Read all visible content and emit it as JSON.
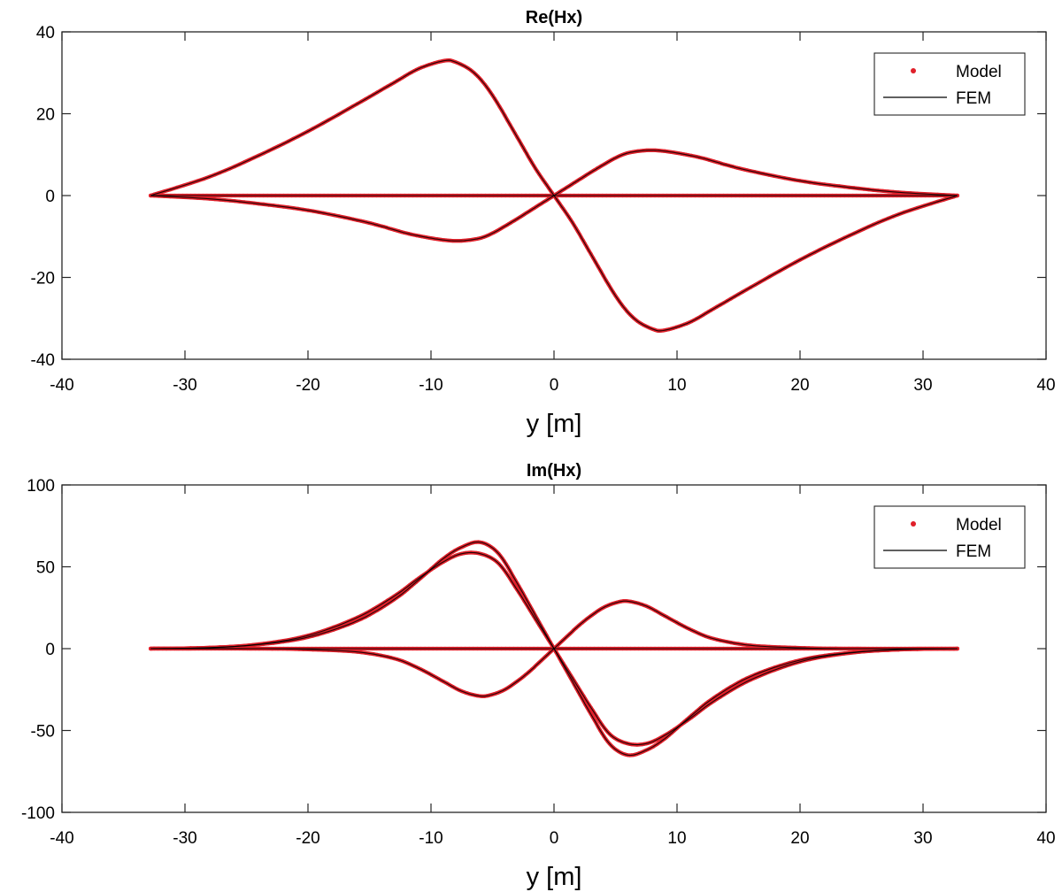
{
  "chart_data": [
    {
      "type": "line",
      "title": "Re(Hx)",
      "xlabel": "y [m]",
      "ylabel": "",
      "xlim": [
        -40,
        40
      ],
      "ylim": [
        -40,
        40
      ],
      "xticks": [
        -40,
        -30,
        -20,
        -10,
        0,
        10,
        20,
        30,
        40
      ],
      "yticks": [
        -40,
        -20,
        0,
        20,
        40
      ],
      "xtick_labels": [
        "-40",
        "-30",
        "-20",
        "-10",
        "0",
        "10",
        "20",
        "30",
        "40"
      ],
      "ytick_labels": [
        "-40",
        "-20",
        "0",
        "20",
        "40"
      ],
      "legend": {
        "placement": "top-right",
        "entries": [
          "Model",
          "FEM"
        ]
      },
      "grid": false,
      "colors": {
        "model": "#e0202a",
        "fem": "#000000"
      },
      "series": [
        {
          "label": "Model",
          "style": "points",
          "curves": [
            {
              "x": [
                -32.8,
                -28,
                -24,
                -20,
                -16,
                -13,
                -11,
                -9,
                -8,
                -6.5,
                -5,
                -3,
                -1.5,
                0,
                1.5,
                3,
                5,
                6.5,
                8,
                9,
                11,
                13,
                16,
                20,
                24,
                28,
                32.8
              ],
              "y": [
                0,
                4.6,
                9.8,
                15.7,
                22.4,
                27.6,
                31,
                32.9,
                32.6,
                30,
                24.5,
                14.3,
                6.6,
                0,
                -6.6,
                -14.3,
                -24.5,
                -30,
                -32.6,
                -32.9,
                -31,
                -27.6,
                -22.4,
                -15.7,
                -9.8,
                -4.6,
                0
              ]
            },
            {
              "x": [
                -32.8,
                -28,
                -24,
                -20,
                -16,
                -14,
                -12,
                -10,
                -8.5,
                -7.3,
                -6,
                -5,
                -4,
                -3,
                -2,
                -1,
                0,
                1,
                2,
                3,
                4,
                5,
                6,
                7.3,
                8.5,
                10,
                12,
                14,
                16,
                20,
                24,
                28,
                32.8
              ],
              "y": [
                0,
                -0.8,
                -2,
                -3.6,
                -6,
                -7.5,
                -9.2,
                -10.4,
                -11,
                -11,
                -10.4,
                -9.2,
                -7.5,
                -5.7,
                -3.8,
                -1.9,
                0,
                1.9,
                3.8,
                5.7,
                7.5,
                9.2,
                10.4,
                11,
                11,
                10.4,
                9.2,
                7.5,
                6,
                3.6,
                2,
                0.8,
                0
              ]
            },
            {
              "x": [
                -32.8,
                32.8
              ],
              "y": [
                0,
                0
              ]
            }
          ]
        },
        {
          "label": "FEM",
          "style": "line",
          "curves": [
            {
              "x": [
                -32.8,
                -28,
                -24,
                -20,
                -16,
                -13,
                -11,
                -9,
                -8,
                -6.5,
                -5,
                -3,
                -1.5,
                0,
                1.5,
                3,
                5,
                6.5,
                8,
                9,
                11,
                13,
                16,
                20,
                24,
                28,
                32.8
              ],
              "y": [
                0,
                4.6,
                9.8,
                15.7,
                22.4,
                27.6,
                31,
                32.9,
                32.6,
                30,
                24.5,
                14.3,
                6.6,
                0,
                -6.6,
                -14.3,
                -24.5,
                -30,
                -32.6,
                -32.9,
                -31,
                -27.6,
                -22.4,
                -15.7,
                -9.8,
                -4.6,
                0
              ]
            },
            {
              "x": [
                -32.8,
                -28,
                -24,
                -20,
                -16,
                -14,
                -12,
                -10,
                -8.5,
                -7.3,
                -6,
                -5,
                -4,
                -3,
                -2,
                -1,
                0,
                1,
                2,
                3,
                4,
                5,
                6,
                7.3,
                8.5,
                10,
                12,
                14,
                16,
                20,
                24,
                28,
                32.8
              ],
              "y": [
                0,
                -0.8,
                -2,
                -3.6,
                -6,
                -7.5,
                -9.2,
                -10.4,
                -11,
                -11,
                -10.4,
                -9.2,
                -7.5,
                -5.7,
                -3.8,
                -1.9,
                0,
                1.9,
                3.8,
                5.7,
                7.5,
                9.2,
                10.4,
                11,
                11,
                10.4,
                9.2,
                7.5,
                6,
                3.6,
                2,
                0.8,
                0
              ]
            },
            {
              "x": [
                -32.8,
                32.8
              ],
              "y": [
                0,
                0
              ]
            }
          ]
        }
      ]
    },
    {
      "type": "line",
      "title": "Im(Hx)",
      "xlabel": "y [m]",
      "ylabel": "",
      "xlim": [
        -40,
        40
      ],
      "ylim": [
        -100,
        100
      ],
      "xticks": [
        -40,
        -30,
        -20,
        -10,
        0,
        10,
        20,
        30,
        40
      ],
      "yticks": [
        -100,
        -50,
        0,
        50,
        100
      ],
      "xtick_labels": [
        "-40",
        "-30",
        "-20",
        "-10",
        "0",
        "10",
        "20",
        "30",
        "40"
      ],
      "ytick_labels": [
        "-100",
        "-50",
        "0",
        "50",
        "100"
      ],
      "legend": {
        "placement": "top-right",
        "entries": [
          "Model",
          "FEM"
        ]
      },
      "grid": false,
      "colors": {
        "model": "#e0202a",
        "fem": "#000000"
      },
      "series": [
        {
          "label": "Model",
          "style": "points",
          "curves": [
            {
              "x": [
                -32.8,
                -28,
                -24,
                -20,
                -16,
                -13,
                -11,
                -9,
                -7.5,
                -6,
                -4.5,
                -3,
                -1.5,
                0,
                1.5,
                3,
                4.5,
                6,
                7.5,
                9,
                11,
                13,
                16,
                20,
                24,
                28,
                32.8
              ],
              "y": [
                0,
                0.6,
                2.5,
                7,
                17,
                30,
                42,
                55,
                62,
                65,
                58,
                40,
                20,
                0,
                -20,
                -40,
                -58,
                -65,
                -62,
                -55,
                -42,
                -30,
                -17,
                -7,
                -2.5,
                -0.6,
                0
              ]
            },
            {
              "x": [
                -32.8,
                -28,
                -24,
                -20,
                -16,
                -13,
                -11,
                -9,
                -7.5,
                -6,
                -4.5,
                -3,
                -1.5,
                0,
                1.5,
                3,
                4.5,
                6,
                7.5,
                9,
                11,
                13,
                16,
                20,
                24,
                28,
                32.8
              ],
              "y": [
                0,
                0.6,
                2.7,
                8,
                19,
                32,
                43,
                53,
                58,
                58,
                52,
                36,
                18,
                0,
                -18,
                -36,
                -52,
                -58,
                -58,
                -53,
                -43,
                -32,
                -19,
                -8,
                -2.7,
                -0.6,
                0
              ]
            },
            {
              "x": [
                -32.8,
                -24,
                -20,
                -16,
                -13,
                -11,
                -9,
                -7.5,
                -6,
                -5,
                -4,
                -3,
                -2,
                -1,
                0,
                1,
                2,
                3,
                4,
                5,
                6,
                7.5,
                9,
                11,
                13,
                16,
                20,
                24,
                32.8
              ],
              "y": [
                0,
                0,
                -0.5,
                -2,
                -6,
                -12,
                -20,
                -26,
                -29,
                -28,
                -25,
                -20,
                -14,
                -7,
                0,
                7,
                14,
                20,
                25,
                28,
                29,
                26,
                20,
                12,
                6,
                2,
                0.5,
                0,
                0
              ]
            },
            {
              "x": [
                -32.8,
                32.8
              ],
              "y": [
                0,
                0
              ]
            }
          ]
        },
        {
          "label": "FEM",
          "style": "line",
          "curves": [
            {
              "x": [
                -32.8,
                -28,
                -24,
                -20,
                -16,
                -13,
                -11,
                -9,
                -7.5,
                -6,
                -4.5,
                -3,
                -1.5,
                0,
                1.5,
                3,
                4.5,
                6,
                7.5,
                9,
                11,
                13,
                16,
                20,
                24,
                28,
                32.8
              ],
              "y": [
                0,
                0.6,
                2.5,
                7,
                17,
                30,
                42,
                55,
                62,
                65,
                58,
                40,
                20,
                0,
                -20,
                -40,
                -58,
                -65,
                -62,
                -55,
                -42,
                -30,
                -17,
                -7,
                -2.5,
                -0.6,
                0
              ]
            },
            {
              "x": [
                -32.8,
                -28,
                -24,
                -20,
                -16,
                -13,
                -11,
                -9,
                -7.5,
                -6,
                -4.5,
                -3,
                -1.5,
                0,
                1.5,
                3,
                4.5,
                6,
                7.5,
                9,
                11,
                13,
                16,
                20,
                24,
                28,
                32.8
              ],
              "y": [
                0,
                0.6,
                2.7,
                8,
                19,
                32,
                43,
                53,
                58,
                58,
                52,
                36,
                18,
                0,
                -18,
                -36,
                -52,
                -58,
                -58,
                -53,
                -43,
                -32,
                -19,
                -8,
                -2.7,
                -0.6,
                0
              ]
            },
            {
              "x": [
                -32.8,
                -24,
                -20,
                -16,
                -13,
                -11,
                -9,
                -7.5,
                -6,
                -5,
                -4,
                -3,
                -2,
                -1,
                0,
                1,
                2,
                3,
                4,
                5,
                6,
                7.5,
                9,
                11,
                13,
                16,
                20,
                24,
                32.8
              ],
              "y": [
                0,
                0,
                -0.5,
                -2,
                -6,
                -12,
                -20,
                -26,
                -29,
                -28,
                -25,
                -20,
                -14,
                -7,
                0,
                7,
                14,
                20,
                25,
                28,
                29,
                26,
                20,
                12,
                6,
                2,
                0.5,
                0,
                0
              ]
            },
            {
              "x": [
                -32.8,
                32.8
              ],
              "y": [
                0,
                0
              ]
            }
          ]
        }
      ]
    }
  ]
}
